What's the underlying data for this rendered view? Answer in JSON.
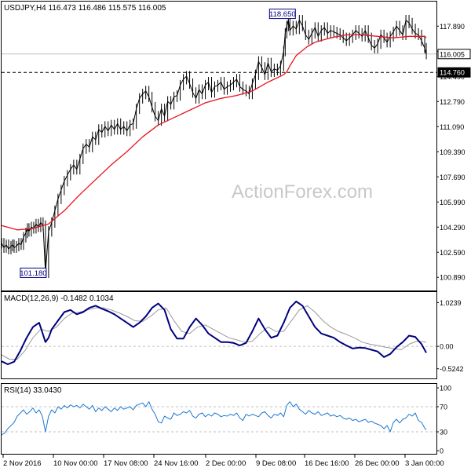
{
  "chart_data": {
    "type": "line",
    "symbol_header": "USDJPY,H4  116.473 116.486 115.575 116.005",
    "watermark": "ActionForex.com",
    "colors": {
      "price": "#000000",
      "ma": "#e8141e",
      "macd_main": "#000080",
      "macd_signal": "#9a9a9a",
      "rsi": "#1e78d0",
      "grid": "#c0c0c0",
      "level_line": "#000000",
      "label_box": "#000000",
      "label_highlight": "#000080"
    },
    "x_labels": [
      "2 Nov 2016",
      "10 Nov 00:00",
      "17 Nov 08:00",
      "24 Nov 16:00",
      "2 Dec 00:00",
      "9 Dec 08:00",
      "16 Dec 16:00",
      "26 Dec 00:00",
      "3 Jan 00:00"
    ],
    "price_panel": {
      "ylim": [
        100.0,
        119.5
      ],
      "y_ticks": [
        100.89,
        102.59,
        104.29,
        105.99,
        107.69,
        109.39,
        111.09,
        112.79,
        114.49,
        116.19,
        117.89
      ],
      "y_tick_labels": [
        "100.890",
        "102.590",
        "104.290",
        "105.990",
        "107.690",
        "109.390",
        "111.090",
        "112.790",
        "114.490",
        "",
        "117.890"
      ],
      "current_price": 116.005,
      "current_price_label": "116.005",
      "support_level": 114.76,
      "support_label": "114.760",
      "high_label": "118.650",
      "low_label": "101.180",
      "series": [
        {
          "name": "price",
          "x": [
            0,
            3,
            6,
            9,
            12,
            14,
            16,
            19,
            22,
            25,
            28,
            31,
            33,
            35,
            38,
            41,
            44,
            47,
            50,
            53,
            56,
            60,
            64,
            68,
            72,
            76,
            80,
            84,
            88,
            92,
            96,
            100,
            104,
            108,
            112,
            116,
            120,
            124,
            128,
            132,
            136,
            140,
            144,
            148,
            152,
            156,
            160,
            164,
            168,
            172,
            176,
            180,
            184,
            188,
            192,
            196,
            200,
            204,
            208,
            212,
            216,
            220,
            224,
            228,
            232,
            236,
            240,
            244,
            248,
            252,
            256,
            260,
            264,
            268,
            272,
            276,
            280,
            284,
            288,
            292,
            296,
            300,
            304,
            308,
            312,
            316,
            320,
            324,
            328,
            332,
            336,
            340,
            344,
            348,
            352,
            356,
            360,
            362,
            364,
            366,
            368,
            372,
            376,
            380,
            384,
            388,
            392,
            396,
            400,
            404,
            408,
            412,
            416,
            420,
            424,
            428,
            432,
            436,
            440,
            444,
            448,
            452,
            456,
            460,
            464,
            468,
            472,
            476,
            480,
            484,
            488,
            492,
            496,
            500,
            504,
            508,
            512,
            516,
            520,
            524,
            528,
            532,
            536,
            540,
            542
          ],
          "y": [
            103.2,
            102.9,
            103.1,
            102.8,
            103.0,
            103.1,
            102.9,
            103.0,
            103.2,
            103.1,
            103.6,
            103.9,
            104.2,
            104.0,
            104.3,
            104.2,
            104.5,
            104.3,
            104.6,
            104.4,
            101.2,
            104.0,
            104.6,
            105.4,
            106.2,
            106.8,
            107.4,
            107.8,
            108.2,
            108.5,
            108.2,
            108.9,
            109.6,
            109.9,
            109.7,
            110.4,
            110.2,
            110.9,
            110.7,
            111.1,
            110.8,
            111.2,
            110.9,
            111.3,
            110.9,
            111.1,
            110.8,
            111.2,
            111.3,
            112.3,
            113.0,
            113.3,
            113.5,
            113.1,
            112.4,
            111.8,
            111.5,
            112.3,
            111.8,
            112.8,
            112.6,
            113.1,
            113.2,
            113.9,
            114.3,
            114.5,
            114.0,
            113.4,
            113.0,
            113.6,
            113.3,
            113.9,
            114.1,
            113.4,
            113.8,
            113.9,
            114.1,
            113.6,
            113.8,
            113.9,
            114.1,
            114.3,
            113.8,
            113.6,
            113.5,
            113.3,
            114.0,
            114.6,
            115.5,
            115.1,
            114.6,
            115.4,
            114.8,
            115.0,
            114.9,
            115.2,
            116.2,
            117.4,
            117.9,
            118.3,
            117.6,
            117.9,
            117.7,
            118.3,
            117.9,
            117.3,
            117.0,
            117.4,
            117.8,
            117.2,
            117.6,
            117.8,
            117.4,
            117.6,
            117.5,
            117.4,
            117.3,
            117.1,
            116.9,
            117.1,
            117.3,
            117.6,
            117.4,
            117.2,
            117.6,
            117.1,
            116.6,
            116.4,
            116.7,
            117.3,
            117.1,
            116.8,
            117.2,
            117.5,
            117.9,
            117.6,
            117.3,
            118.3,
            118.1,
            117.7,
            117.4,
            117.3,
            116.9,
            116.4,
            116.0
          ]
        },
        {
          "name": "moving average",
          "x": [
            0,
            20,
            40,
            60,
            80,
            100,
            120,
            140,
            160,
            180,
            200,
            220,
            240,
            260,
            280,
            300,
            320,
            340,
            360,
            364,
            368,
            376,
            390,
            400,
            420,
            440,
            460,
            480,
            500,
            520,
            540,
            542
          ],
          "y": [
            104.4,
            104.1,
            104.2,
            104.5,
            105.4,
            106.5,
            107.5,
            108.5,
            109.4,
            110.4,
            111.2,
            111.7,
            112.2,
            112.7,
            113.0,
            113.2,
            113.5,
            114.1,
            114.6,
            114.8,
            115.2,
            115.9,
            116.5,
            116.8,
            117.1,
            117.3,
            117.3,
            117.2,
            117.1,
            117.2,
            117.2,
            117.1
          ]
        }
      ]
    },
    "macd_panel": {
      "title": "MACD(12,26,9) -0.1482 0.1034",
      "ylim": [
        -0.75,
        1.25
      ],
      "y_ticks": [
        1.0239,
        0.0,
        -0.5242
      ],
      "y_tick_labels": [
        "1.0239",
        "0.00",
        "-0.5242"
      ],
      "series": [
        {
          "name": "macd",
          "x": [
            0,
            8,
            16,
            24,
            32,
            40,
            48,
            56,
            60,
            64,
            72,
            80,
            88,
            96,
            104,
            112,
            120,
            128,
            136,
            144,
            152,
            160,
            168,
            176,
            184,
            192,
            200,
            208,
            216,
            224,
            232,
            240,
            248,
            256,
            264,
            272,
            280,
            288,
            296,
            304,
            312,
            320,
            328,
            336,
            344,
            352,
            360,
            368,
            376,
            384,
            392,
            400,
            408,
            416,
            424,
            432,
            440,
            448,
            456,
            464,
            472,
            480,
            488,
            496,
            504,
            512,
            520,
            528,
            536,
            542
          ],
          "y": [
            -0.35,
            -0.42,
            -0.36,
            -0.1,
            0.2,
            0.45,
            0.55,
            0.1,
            0.2,
            0.4,
            0.6,
            0.8,
            0.85,
            0.75,
            0.8,
            0.9,
            0.95,
            0.88,
            0.82,
            0.75,
            0.65,
            0.55,
            0.45,
            0.55,
            0.7,
            0.9,
            1.0,
            0.85,
            0.4,
            0.18,
            0.18,
            0.45,
            0.65,
            0.5,
            0.3,
            0.2,
            0.1,
            0.1,
            0.08,
            0.02,
            0.08,
            0.35,
            0.65,
            0.4,
            0.2,
            0.25,
            0.55,
            0.9,
            1.05,
            0.95,
            0.7,
            0.45,
            0.3,
            0.25,
            0.2,
            0.1,
            0.02,
            -0.05,
            -0.03,
            -0.04,
            -0.08,
            -0.12,
            -0.25,
            -0.18,
            -0.02,
            0.1,
            0.25,
            0.22,
            0.05,
            -0.15
          ]
        },
        {
          "name": "signal",
          "x": [
            0,
            10,
            20,
            30,
            40,
            50,
            60,
            70,
            80,
            90,
            100,
            110,
            120,
            130,
            140,
            150,
            160,
            170,
            180,
            190,
            200,
            210,
            220,
            230,
            240,
            250,
            260,
            270,
            280,
            290,
            300,
            310,
            320,
            330,
            340,
            350,
            360,
            370,
            380,
            390,
            400,
            410,
            420,
            430,
            440,
            450,
            460,
            470,
            480,
            490,
            500,
            510,
            520,
            530,
            542
          ],
          "y": [
            -0.2,
            -0.3,
            -0.3,
            -0.1,
            0.2,
            0.4,
            0.35,
            0.45,
            0.65,
            0.78,
            0.8,
            0.85,
            0.9,
            0.9,
            0.85,
            0.78,
            0.7,
            0.6,
            0.58,
            0.7,
            0.85,
            0.9,
            0.6,
            0.35,
            0.3,
            0.45,
            0.5,
            0.4,
            0.3,
            0.2,
            0.15,
            0.1,
            0.12,
            0.3,
            0.45,
            0.35,
            0.35,
            0.6,
            0.85,
            0.95,
            0.8,
            0.6,
            0.45,
            0.35,
            0.28,
            0.2,
            0.1,
            0.05,
            0.02,
            -0.02,
            -0.05,
            -0.08,
            0.05,
            0.12,
            0.1
          ]
        }
      ]
    },
    "rsi_panel": {
      "title": "RSI(14) 33.0430",
      "ylim": [
        0,
        100
      ],
      "y_ticks": [
        100,
        70,
        30,
        0
      ],
      "y_tick_labels": [
        "100",
        "70",
        "30",
        "0"
      ],
      "dashed_levels": [
        70,
        30
      ],
      "series": [
        {
          "name": "rsi",
          "x": [
            0,
            4,
            8,
            12,
            16,
            20,
            24,
            28,
            32,
            36,
            40,
            44,
            48,
            52,
            56,
            60,
            64,
            68,
            72,
            76,
            80,
            84,
            88,
            92,
            96,
            100,
            104,
            108,
            112,
            116,
            120,
            124,
            128,
            132,
            136,
            140,
            144,
            148,
            152,
            156,
            160,
            164,
            168,
            172,
            176,
            180,
            184,
            188,
            192,
            196,
            200,
            204,
            208,
            212,
            216,
            220,
            224,
            228,
            232,
            236,
            240,
            244,
            248,
            252,
            256,
            260,
            264,
            268,
            272,
            276,
            280,
            284,
            288,
            292,
            296,
            300,
            304,
            308,
            312,
            316,
            320,
            324,
            328,
            332,
            336,
            340,
            344,
            348,
            352,
            356,
            360,
            364,
            368,
            372,
            376,
            380,
            384,
            388,
            392,
            396,
            400,
            404,
            408,
            412,
            416,
            420,
            424,
            428,
            432,
            436,
            440,
            444,
            448,
            452,
            456,
            460,
            464,
            468,
            472,
            476,
            480,
            484,
            488,
            492,
            496,
            500,
            504,
            508,
            512,
            516,
            520,
            524,
            528,
            532,
            536,
            540,
            542
          ],
          "y": [
            25,
            28,
            35,
            40,
            45,
            55,
            60,
            65,
            58,
            62,
            68,
            60,
            65,
            55,
            30,
            55,
            65,
            60,
            70,
            66,
            72,
            68,
            73,
            70,
            72,
            68,
            74,
            70,
            66,
            72,
            62,
            68,
            64,
            70,
            66,
            62,
            68,
            64,
            70,
            66,
            68,
            70,
            65,
            72,
            74,
            76,
            70,
            78,
            66,
            58,
            46,
            44,
            55,
            52,
            50,
            60,
            56,
            58,
            62,
            60,
            64,
            55,
            52,
            58,
            60,
            54,
            58,
            55,
            60,
            58,
            54,
            56,
            55,
            58,
            56,
            60,
            52,
            48,
            58,
            55,
            58,
            56,
            54,
            60,
            62,
            56,
            52,
            58,
            56,
            60,
            54,
            72,
            78,
            70,
            74,
            66,
            62,
            58,
            64,
            60,
            58,
            62,
            56,
            58,
            60,
            55,
            57,
            54,
            56,
            52,
            50,
            52,
            48,
            50,
            46,
            48,
            50,
            45,
            47,
            44,
            42,
            40,
            35,
            40,
            30,
            45,
            50,
            44,
            50,
            52,
            58,
            55,
            60,
            48,
            45,
            36,
            33
          ]
        }
      ]
    }
  }
}
